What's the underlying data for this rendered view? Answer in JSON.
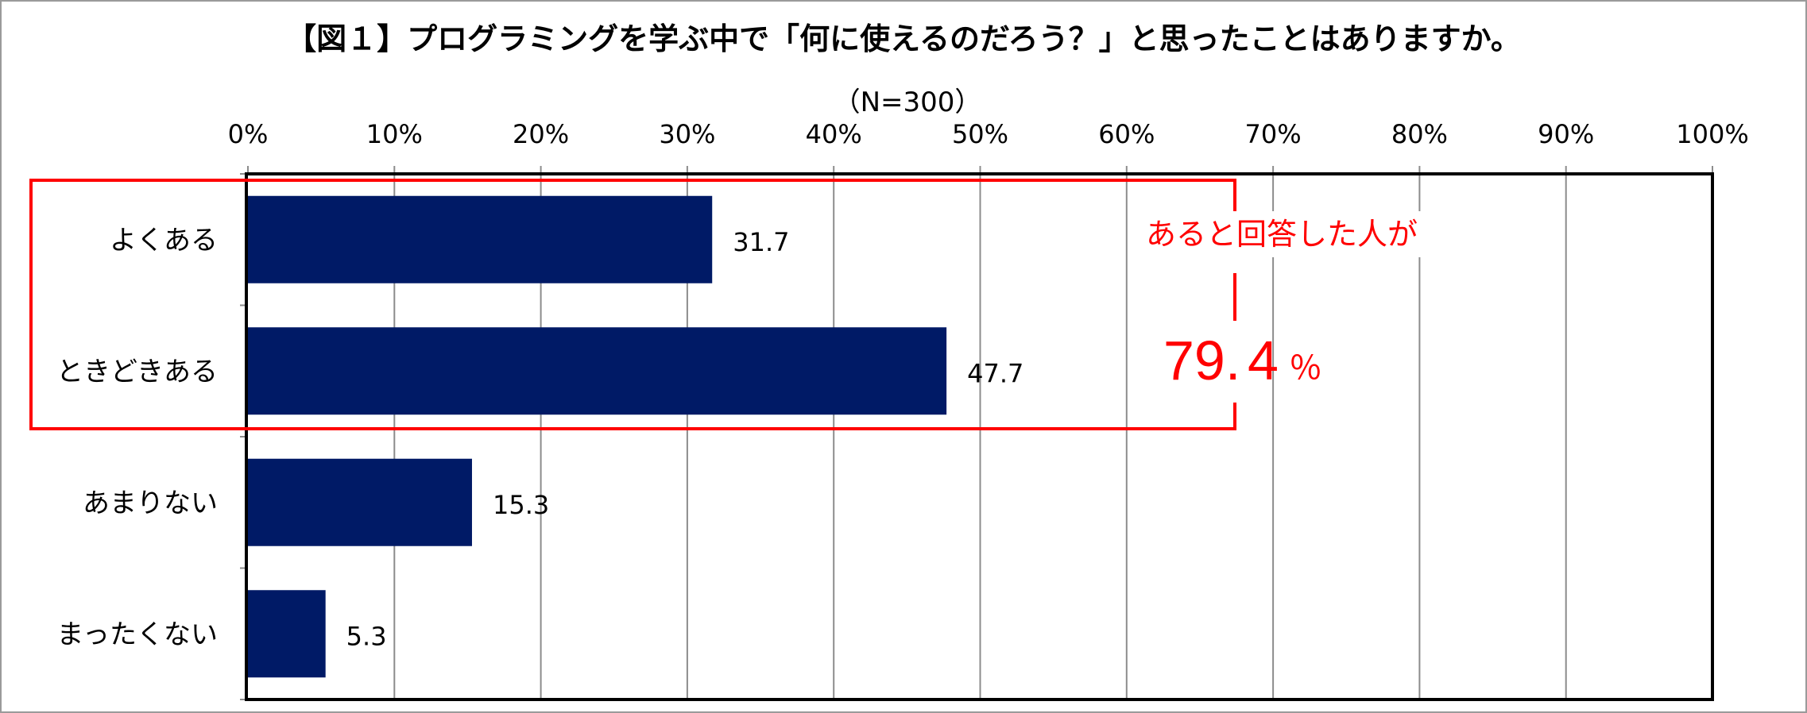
{
  "chart_data": {
    "type": "bar",
    "orientation": "horizontal",
    "title": "【図１】プログラミングを学ぶ中で「何に使えるのだろう？」と思ったことはありますか。",
    "subtitle": "（N=300）",
    "categories": [
      "よくある",
      "ときどきある",
      "あまりない",
      "まったくない"
    ],
    "values": [
      31.7,
      47.7,
      15.3,
      5.3
    ],
    "xlim": [
      0,
      100
    ],
    "ticks": [
      "0%",
      "10%",
      "20%",
      "30%",
      "40%",
      "50%",
      "60%",
      "70%",
      "80%",
      "90%",
      "100%"
    ],
    "grid": true,
    "bar_color": "#001a66",
    "annotation": {
      "text": "あると回答した人が",
      "value": "79.",
      "value_digit": "4",
      "unit": "％",
      "color": "#ff0000",
      "groups": [
        "よくある",
        "ときどきある"
      ]
    }
  }
}
